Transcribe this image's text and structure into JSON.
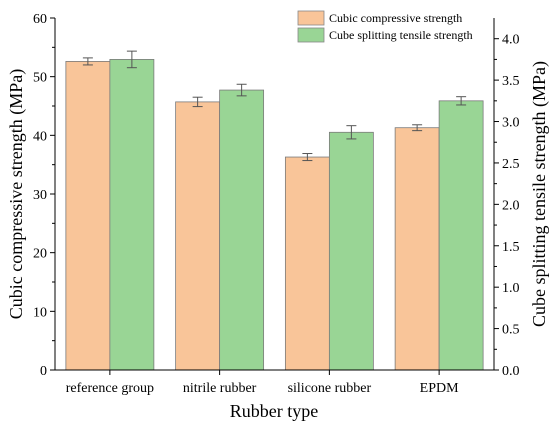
{
  "chart_data": {
    "type": "bar",
    "title": "",
    "xlabel": "Rubber type",
    "ylabel_left": "Cubic compressive strength (MPa)",
    "ylabel_right": "Cube splitting tensile strength (MPa)",
    "categories": [
      "reference group",
      "nitrile rubber",
      "silicone rubber",
      "EPDM"
    ],
    "ylim_left": [
      0,
      60
    ],
    "ylim_right": [
      0,
      4.25
    ],
    "yticks_left": [
      "0",
      "10",
      "20",
      "30",
      "40",
      "50",
      "60"
    ],
    "yticks_right": [
      "0.0",
      "0.5",
      "1.0",
      "1.5",
      "2.0",
      "2.5",
      "3.0",
      "3.5",
      "4.0"
    ],
    "series": [
      {
        "name": "Cubic compressive strength",
        "axis": "left",
        "color": "#f9c599",
        "values": [
          52.6,
          45.7,
          36.3,
          41.3
        ],
        "errors": [
          0.6,
          0.8,
          0.6,
          0.5
        ]
      },
      {
        "name": "Cube splitting tensile strength",
        "axis": "right",
        "color": "#99d595",
        "values": [
          3.75,
          3.38,
          2.87,
          3.25
        ],
        "errors": [
          0.1,
          0.07,
          0.08,
          0.05
        ]
      }
    ],
    "legend": "top-right",
    "grid": false
  }
}
